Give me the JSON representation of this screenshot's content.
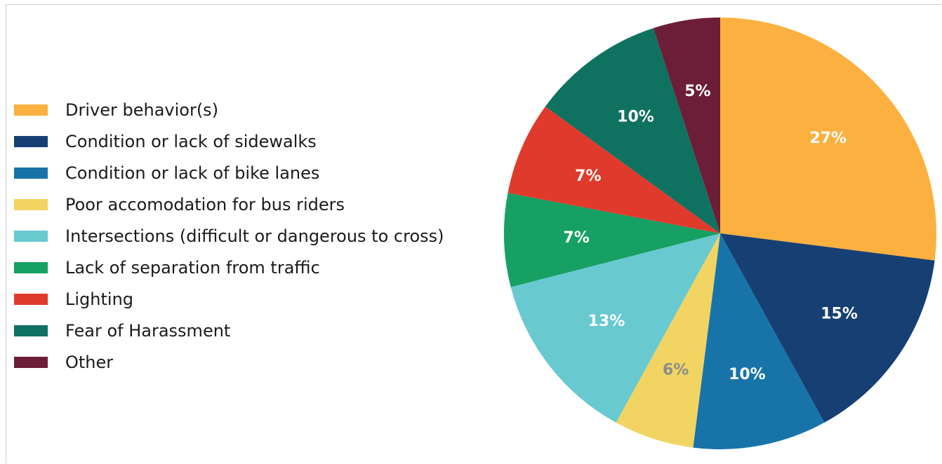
{
  "chart_data": {
    "type": "pie",
    "title": "",
    "legend_placement": "left",
    "slices": [
      {
        "label": "Driver behavior(s)",
        "value": 27,
        "value_label": "27%",
        "color": "#FBB040",
        "label_color": "#ffffff"
      },
      {
        "label": "Condition or lack of sidewalks",
        "value": 15,
        "value_label": "15%",
        "color": "#163F73",
        "label_color": "#ffffff"
      },
      {
        "label": "Condition or lack of bike lanes",
        "value": 10,
        "value_label": "10%",
        "color": "#1874A8",
        "label_color": "#ffffff"
      },
      {
        "label": "Poor accomodation for bus riders",
        "value": 6,
        "value_label": "6%",
        "color": "#F2D462",
        "label_color": "#8c8c8c"
      },
      {
        "label": "Intersections (difficult or dangerous to cross)",
        "value": 13,
        "value_label": "13%",
        "color": "#68C9D1",
        "label_color": "#ffffff"
      },
      {
        "label": "Lack of separation from traffic",
        "value": 7,
        "value_label": "7%",
        "color": "#16A063",
        "label_color": "#ffffff"
      },
      {
        "label": "Lighting",
        "value": 7,
        "value_label": "7%",
        "color": "#DF3A2C",
        "label_color": "#ffffff"
      },
      {
        "label": "Fear of Harassment",
        "value": 10,
        "value_label": "10%",
        "color": "#0F7260",
        "label_color": "#ffffff"
      },
      {
        "label": "Other",
        "value": 5,
        "value_label": "5%",
        "color": "#6C1D37",
        "label_color": "#ffffff"
      }
    ]
  }
}
